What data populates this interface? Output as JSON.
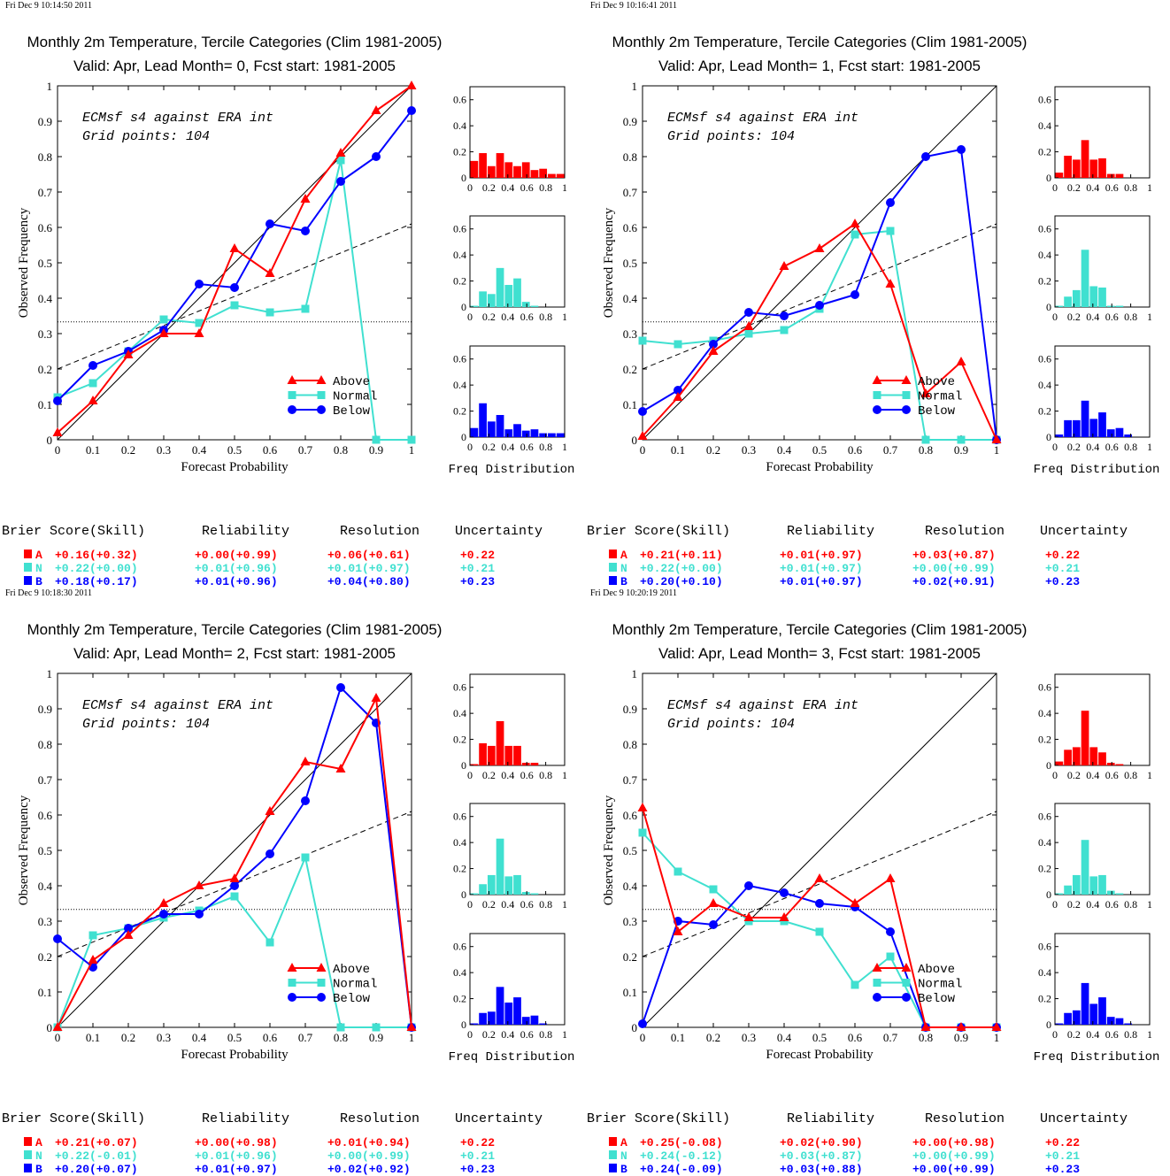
{
  "colors": {
    "above": "#ff0000",
    "normal": "#40e0d0",
    "below": "#0000ff",
    "axis": "#000000"
  },
  "common": {
    "title": "Monthly 2m Temperature, Tercile Categories (Clim 1981-2005)",
    "annotation_line1": "ECMsf s4 against ERA int",
    "annotation_line2": "Grid points:  104",
    "xlabel": "Forecast Probability",
    "ylabel": "Observed Frequency",
    "hist_xlabel": "Freq Distribution",
    "legend": [
      "Above",
      "Normal",
      "Below"
    ],
    "score_headers": [
      "Brier Score(Skill)",
      "Reliability",
      "Resolution",
      "Uncertainty"
    ],
    "x_ticks": [
      "0",
      "0.1",
      "0.2",
      "0.3",
      "0.4",
      "0.5",
      "0.6",
      "0.7",
      "0.8",
      "0.9",
      "1"
    ],
    "y_ticks": [
      "0",
      "0.1",
      "0.2",
      "0.3",
      "0.4",
      "0.5",
      "0.6",
      "0.7",
      "0.8",
      "0.9",
      "1"
    ],
    "hist_x_ticks": [
      "0",
      "0.2",
      "0.4",
      "0.6",
      "0.8",
      "1"
    ],
    "hist_y_ticks": [
      "0",
      "0.2",
      "0.4",
      "0.6"
    ]
  },
  "chart_data": [
    {
      "type": "line",
      "timestamp": "Fri Dec  9 10:14:50 2011",
      "subtitle": "Valid: Apr, Lead Month= 0, Fcst start: 1981-2005",
      "xlim": [
        0,
        1
      ],
      "ylim": [
        0,
        1
      ],
      "hist_ylim": [
        0,
        0.7
      ],
      "climatology": 0.333,
      "regression": [
        [
          0,
          0.2
        ],
        [
          1,
          0.61
        ]
      ],
      "x": [
        0,
        0.1,
        0.2,
        0.3,
        0.4,
        0.5,
        0.6,
        0.7,
        0.8,
        0.9,
        1
      ],
      "series": [
        {
          "name": "Above",
          "values": [
            0.02,
            0.11,
            0.24,
            0.3,
            0.3,
            0.54,
            0.47,
            0.68,
            0.81,
            0.93,
            1.0
          ]
        },
        {
          "name": "Normal",
          "values": [
            0.12,
            0.16,
            0.25,
            0.34,
            0.33,
            0.38,
            0.36,
            0.37,
            0.79,
            0.0,
            0.0
          ]
        },
        {
          "name": "Below",
          "values": [
            0.11,
            0.21,
            0.25,
            0.31,
            0.44,
            0.43,
            0.61,
            0.59,
            0.73,
            0.8,
            0.93
          ]
        }
      ],
      "histograms": [
        {
          "name": "Above",
          "values": [
            0.13,
            0.19,
            0.09,
            0.19,
            0.12,
            0.09,
            0.12,
            0.06,
            0.07,
            0.03,
            0.03
          ]
        },
        {
          "name": "Normal",
          "values": [
            0.01,
            0.12,
            0.1,
            0.3,
            0.17,
            0.22,
            0.04,
            0.01,
            0,
            0,
            0
          ]
        },
        {
          "name": "Below",
          "values": [
            0.07,
            0.26,
            0.12,
            0.17,
            0.06,
            0.1,
            0.05,
            0.06,
            0.03,
            0.03,
            0.03
          ]
        }
      ],
      "scores": [
        {
          "cat": "A",
          "bs": "+0.16(+0.32)",
          "rel": "+0.00(+0.99)",
          "res": "+0.06(+0.61)",
          "unc": "+0.22"
        },
        {
          "cat": "N",
          "bs": "+0.22(+0.00)",
          "rel": "+0.01(+0.96)",
          "res": "+0.01(+0.97)",
          "unc": "+0.21"
        },
        {
          "cat": "B",
          "bs": "+0.18(+0.17)",
          "rel": "+0.01(+0.96)",
          "res": "+0.04(+0.80)",
          "unc": "+0.23"
        }
      ]
    },
    {
      "type": "line",
      "timestamp": "Fri Dec  9 10:16:41 2011",
      "subtitle": "Valid: Apr, Lead Month= 1, Fcst start: 1981-2005",
      "xlim": [
        0,
        1
      ],
      "ylim": [
        0,
        1
      ],
      "hist_ylim": [
        0,
        0.7
      ],
      "climatology": 0.333,
      "regression": [
        [
          0,
          0.2
        ],
        [
          1,
          0.61
        ]
      ],
      "x": [
        0,
        0.1,
        0.2,
        0.3,
        0.4,
        0.5,
        0.6,
        0.7,
        0.8,
        0.9,
        1
      ],
      "series": [
        {
          "name": "Above",
          "values": [
            0.01,
            0.12,
            0.25,
            0.32,
            0.49,
            0.54,
            0.61,
            0.44,
            0.13,
            0.22,
            0.0
          ]
        },
        {
          "name": "Normal",
          "values": [
            0.28,
            0.27,
            0.28,
            0.3,
            0.31,
            0.37,
            0.58,
            0.59,
            0.0,
            0.0,
            0.0
          ]
        },
        {
          "name": "Below",
          "values": [
            0.08,
            0.14,
            0.27,
            0.36,
            0.35,
            0.38,
            0.41,
            0.67,
            0.8,
            0.82,
            0.0
          ]
        }
      ],
      "histograms": [
        {
          "name": "Above",
          "values": [
            0.04,
            0.17,
            0.14,
            0.29,
            0.14,
            0.15,
            0.03,
            0.03,
            0,
            0,
            0
          ]
        },
        {
          "name": "Normal",
          "values": [
            0.01,
            0.08,
            0.13,
            0.44,
            0.16,
            0.15,
            0.01,
            0.01,
            0,
            0,
            0
          ]
        },
        {
          "name": "Below",
          "values": [
            0.02,
            0.13,
            0.13,
            0.28,
            0.14,
            0.19,
            0.06,
            0.07,
            0.02,
            0,
            0
          ]
        }
      ],
      "scores": [
        {
          "cat": "A",
          "bs": "+0.21(+0.11)",
          "rel": "+0.01(+0.97)",
          "res": "+0.03(+0.87)",
          "unc": "+0.22"
        },
        {
          "cat": "N",
          "bs": "+0.22(+0.00)",
          "rel": "+0.01(+0.97)",
          "res": "+0.00(+0.99)",
          "unc": "+0.21"
        },
        {
          "cat": "B",
          "bs": "+0.20(+0.10)",
          "rel": "+0.01(+0.97)",
          "res": "+0.02(+0.91)",
          "unc": "+0.23"
        }
      ]
    },
    {
      "type": "line",
      "timestamp": "Fri Dec  9 10:18:30 2011",
      "subtitle": "Valid: Apr, Lead Month= 2, Fcst start: 1981-2005",
      "xlim": [
        0,
        1
      ],
      "ylim": [
        0,
        1
      ],
      "hist_ylim": [
        0,
        0.7
      ],
      "climatology": 0.333,
      "regression": [
        [
          0,
          0.2
        ],
        [
          1,
          0.61
        ]
      ],
      "x": [
        0,
        0.1,
        0.2,
        0.3,
        0.4,
        0.5,
        0.6,
        0.7,
        0.8,
        0.9,
        1
      ],
      "series": [
        {
          "name": "Above",
          "values": [
            0.0,
            0.19,
            0.26,
            0.35,
            0.4,
            0.42,
            0.61,
            0.75,
            0.73,
            0.93,
            0.0
          ]
        },
        {
          "name": "Normal",
          "values": [
            0.0,
            0.26,
            0.28,
            0.31,
            0.33,
            0.37,
            0.24,
            0.48,
            0.0,
            0.0,
            0.0
          ]
        },
        {
          "name": "Below",
          "values": [
            0.25,
            0.17,
            0.28,
            0.32,
            0.32,
            0.4,
            0.49,
            0.64,
            0.96,
            0.86,
            0.0
          ]
        }
      ],
      "histograms": [
        {
          "name": "Above",
          "values": [
            0.01,
            0.17,
            0.15,
            0.34,
            0.15,
            0.15,
            0.02,
            0.02,
            0,
            0,
            0
          ]
        },
        {
          "name": "Normal",
          "values": [
            0.01,
            0.08,
            0.15,
            0.43,
            0.14,
            0.15,
            0.02,
            0.01,
            0,
            0,
            0
          ]
        },
        {
          "name": "Below",
          "values": [
            0.01,
            0.09,
            0.1,
            0.29,
            0.17,
            0.21,
            0.06,
            0.07,
            0.01,
            0,
            0
          ]
        }
      ],
      "scores": [
        {
          "cat": "A",
          "bs": "+0.21(+0.07)",
          "rel": "+0.00(+0.98)",
          "res": "+0.01(+0.94)",
          "unc": "+0.22"
        },
        {
          "cat": "N",
          "bs": "+0.22(-0.01)",
          "rel": "+0.01(+0.96)",
          "res": "+0.00(+0.99)",
          "unc": "+0.21"
        },
        {
          "cat": "B",
          "bs": "+0.20(+0.07)",
          "rel": "+0.01(+0.97)",
          "res": "+0.02(+0.92)",
          "unc": "+0.23"
        }
      ]
    },
    {
      "type": "line",
      "timestamp": "Fri Dec  9 10:20:19 2011",
      "subtitle": "Valid: Apr, Lead Month= 3, Fcst start: 1981-2005",
      "xlim": [
        0,
        1
      ],
      "ylim": [
        0,
        1
      ],
      "hist_ylim": [
        0,
        0.7
      ],
      "climatology": 0.333,
      "regression": [
        [
          0,
          0.2
        ],
        [
          1,
          0.61
        ]
      ],
      "x": [
        0,
        0.1,
        0.2,
        0.3,
        0.4,
        0.5,
        0.6,
        0.7,
        0.8,
        0.9,
        1
      ],
      "series": [
        {
          "name": "Above",
          "values": [
            0.62,
            0.27,
            0.35,
            0.31,
            0.31,
            0.42,
            0.35,
            0.42,
            0.0,
            0.0,
            0.0
          ]
        },
        {
          "name": "Normal",
          "values": [
            0.55,
            0.44,
            0.39,
            0.3,
            0.3,
            0.27,
            0.12,
            0.2,
            0.0,
            0.0,
            0.0
          ]
        },
        {
          "name": "Below",
          "values": [
            0.01,
            0.3,
            0.29,
            0.4,
            0.38,
            0.35,
            0.34,
            0.27,
            0.0,
            0.0,
            0.0
          ]
        }
      ],
      "histograms": [
        {
          "name": "Above",
          "values": [
            0.03,
            0.12,
            0.14,
            0.42,
            0.14,
            0.1,
            0.02,
            0.01,
            0,
            0,
            0
          ]
        },
        {
          "name": "Normal",
          "values": [
            0.01,
            0.07,
            0.15,
            0.42,
            0.14,
            0.15,
            0.03,
            0.01,
            0,
            0,
            0
          ]
        },
        {
          "name": "Below",
          "values": [
            0.01,
            0.09,
            0.11,
            0.32,
            0.16,
            0.21,
            0.06,
            0.05,
            0.01,
            0,
            0
          ]
        }
      ],
      "scores": [
        {
          "cat": "A",
          "bs": "+0.25(-0.08)",
          "rel": "+0.02(+0.90)",
          "res": "+0.00(+0.98)",
          "unc": "+0.22"
        },
        {
          "cat": "N",
          "bs": "+0.24(-0.12)",
          "rel": "+0.03(+0.87)",
          "res": "+0.00(+0.99)",
          "unc": "+0.21"
        },
        {
          "cat": "B",
          "bs": "+0.24(-0.09)",
          "rel": "+0.03(+0.88)",
          "res": "+0.00(+0.99)",
          "unc": "+0.23"
        }
      ]
    }
  ]
}
